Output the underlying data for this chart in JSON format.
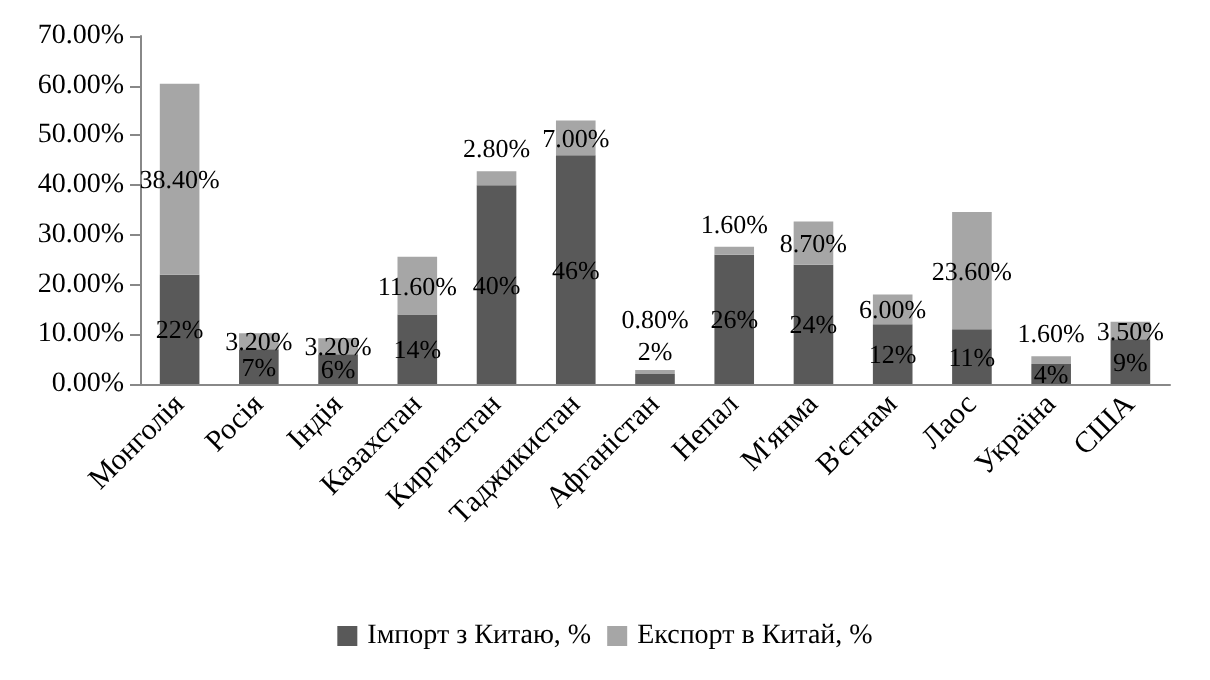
{
  "chart_data": {
    "type": "bar",
    "stacked": true,
    "categories": [
      "Монголія",
      "Росія",
      "Індія",
      "Казахстан",
      "Киргизстан",
      "Таджикистан",
      "Афганістан",
      "Непал",
      "М'янма",
      "В'єтнам",
      "Лаос",
      "Україна",
      "США"
    ],
    "series": [
      {
        "name": "Імпорт з Китаю, %",
        "color": "#595959",
        "values": [
          22,
          7,
          6,
          14,
          40,
          46,
          2,
          26,
          24,
          12,
          11,
          4,
          9
        ],
        "value_labels": [
          "22%",
          "7%",
          "6%",
          "14%",
          "40%",
          "46%",
          "2%",
          "26%",
          "24%",
          "12%",
          "11%",
          "4%",
          "9%"
        ]
      },
      {
        "name": "Експорт в Китай, %",
        "color": "#a6a6a6",
        "values": [
          38.4,
          3.2,
          3.2,
          11.6,
          2.8,
          7.0,
          0.8,
          1.6,
          8.7,
          6.0,
          23.6,
          1.6,
          3.5
        ],
        "value_labels": [
          "38.40%",
          "3.20%",
          "3.20%",
          "11.60%",
          "2.80%",
          "7.00%",
          "0.80%",
          "1.60%",
          "8.70%",
          "6.00%",
          "23.60%",
          "1.60%",
          "3.50%"
        ]
      }
    ],
    "ylim": [
      0,
      70
    ],
    "yticks": [
      {
        "value": 0,
        "label": "0.00%"
      },
      {
        "value": 10,
        "label": "10.00%"
      },
      {
        "value": 20,
        "label": "20.00%"
      },
      {
        "value": 30,
        "label": "30.00%"
      },
      {
        "value": 40,
        "label": "40.00%"
      },
      {
        "value": 50,
        "label": "50.00%"
      },
      {
        "value": 60,
        "label": "60.00%"
      },
      {
        "value": 70,
        "label": "70.00%"
      }
    ],
    "grid": false,
    "legend": "bottom"
  }
}
